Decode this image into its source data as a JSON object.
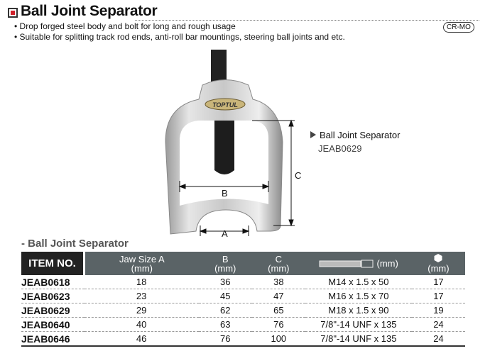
{
  "header": {
    "title": "Ball Joint Separator",
    "badge": "CR-MO",
    "bullets": [
      "Drop forged steel body and bolt for long and rough usage",
      "Suitable for splitting track rod ends, anti-roll bar mountings, steering ball joints and etc."
    ]
  },
  "product": {
    "caption": "Ball Joint Separator",
    "code": "JEAB0629",
    "logo": "TOPTUL",
    "dim_labels": {
      "a": "A",
      "b": "B",
      "c": "C"
    }
  },
  "section_title": "- Ball Joint Separator",
  "table": {
    "headers": [
      {
        "l1": "ITEM NO.",
        "l2": ""
      },
      {
        "l1": "Jaw Size A",
        "l2": "(mm)"
      },
      {
        "l1": "B",
        "l2": "(mm)"
      },
      {
        "l1": "C",
        "l2": "(mm)"
      },
      {
        "l1": "(mm)",
        "l2": "",
        "icon": "bolt-thread-icon"
      },
      {
        "l1": "(mm)",
        "l2": "",
        "icon": "hex-icon"
      }
    ],
    "rows": [
      [
        "JEAB0618",
        "18",
        "36",
        "38",
        "M14 x 1.5 x 50",
        "17"
      ],
      [
        "JEAB0623",
        "23",
        "45",
        "47",
        "M16 x 1.5 x 70",
        "17"
      ],
      [
        "JEAB0629",
        "29",
        "62",
        "65",
        "M18 x 1.5 x 90",
        "19"
      ],
      [
        "JEAB0640",
        "40",
        "63",
        "76",
        "7/8\"-14 UNF x 135",
        "24"
      ],
      [
        "JEAB0646",
        "46",
        "76",
        "100",
        "7/8\"-14 UNF x 135",
        "24"
      ]
    ]
  },
  "colors": {
    "accent": "#d0202a",
    "header_bg": "#5a6366",
    "item_header_bg": "#222222"
  }
}
